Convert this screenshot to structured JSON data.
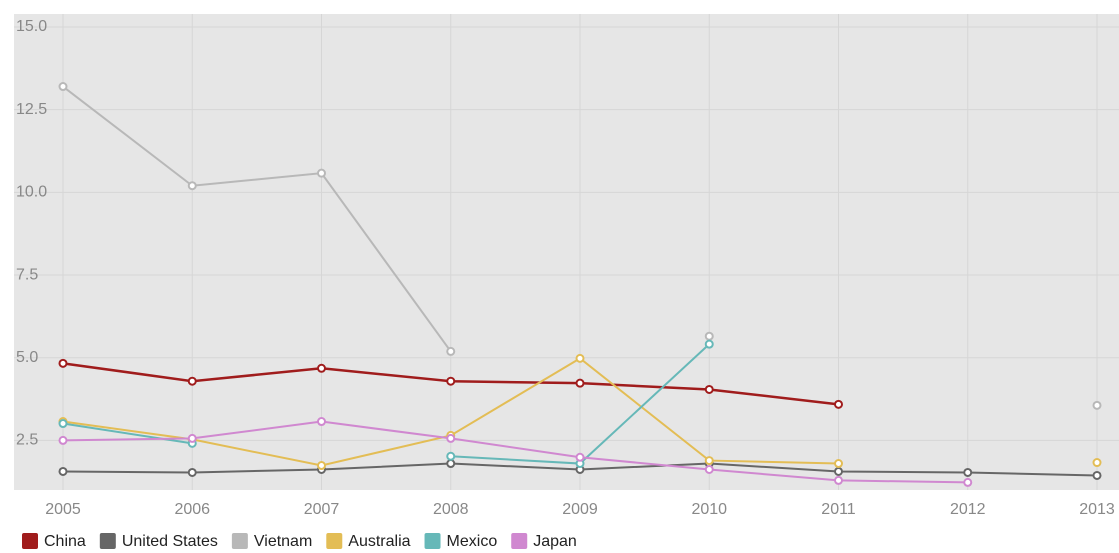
{
  "chart_data": {
    "type": "line",
    "x": [
      2005,
      2006,
      2007,
      2008,
      2009,
      2010,
      2011,
      2012,
      2013
    ],
    "xlim": [
      2005,
      2013
    ],
    "xticks": [
      2005,
      2006,
      2007,
      2008,
      2009,
      2010,
      2011,
      2012,
      2013
    ],
    "ylim": [
      1,
      15
    ],
    "yticks": [
      {
        "value": 2.5,
        "label": "2.5"
      },
      {
        "value": 5,
        "label": "5.0"
      },
      7.5,
      {
        "value": 10,
        "label": "10.0"
      },
      12.5,
      {
        "value": 15,
        "label": "15.0"
      }
    ],
    "grid": true,
    "legend": "bottom",
    "series": [
      {
        "name": "China",
        "color": "#a01c1c",
        "values": [
          4.83,
          4.29,
          4.68,
          4.29,
          4.23,
          4.04,
          3.59,
          null,
          null
        ]
      },
      {
        "name": "United States",
        "color": "#666666",
        "values": [
          1.56,
          1.53,
          1.62,
          1.8,
          1.62,
          1.8,
          1.56,
          1.53,
          1.44
        ]
      },
      {
        "name": "Vietnam",
        "color": "#b8b8b8",
        "values": [
          13.2,
          10.2,
          10.58,
          5.19,
          null,
          5.65,
          null,
          null,
          3.56
        ]
      },
      {
        "name": "Australia",
        "color": "#e3bd55",
        "values": [
          3.07,
          2.53,
          1.74,
          2.65,
          4.98,
          1.89,
          1.8,
          null,
          1.83
        ]
      },
      {
        "name": "Mexico",
        "color": "#66b8b8",
        "values": [
          3.01,
          2.41,
          null,
          2.02,
          1.8,
          5.41,
          null,
          null,
          null
        ]
      },
      {
        "name": "Japan",
        "color": "#d088d0",
        "values": [
          2.5,
          2.56,
          3.07,
          2.56,
          1.99,
          1.62,
          1.29,
          1.23,
          null
        ]
      }
    ]
  }
}
